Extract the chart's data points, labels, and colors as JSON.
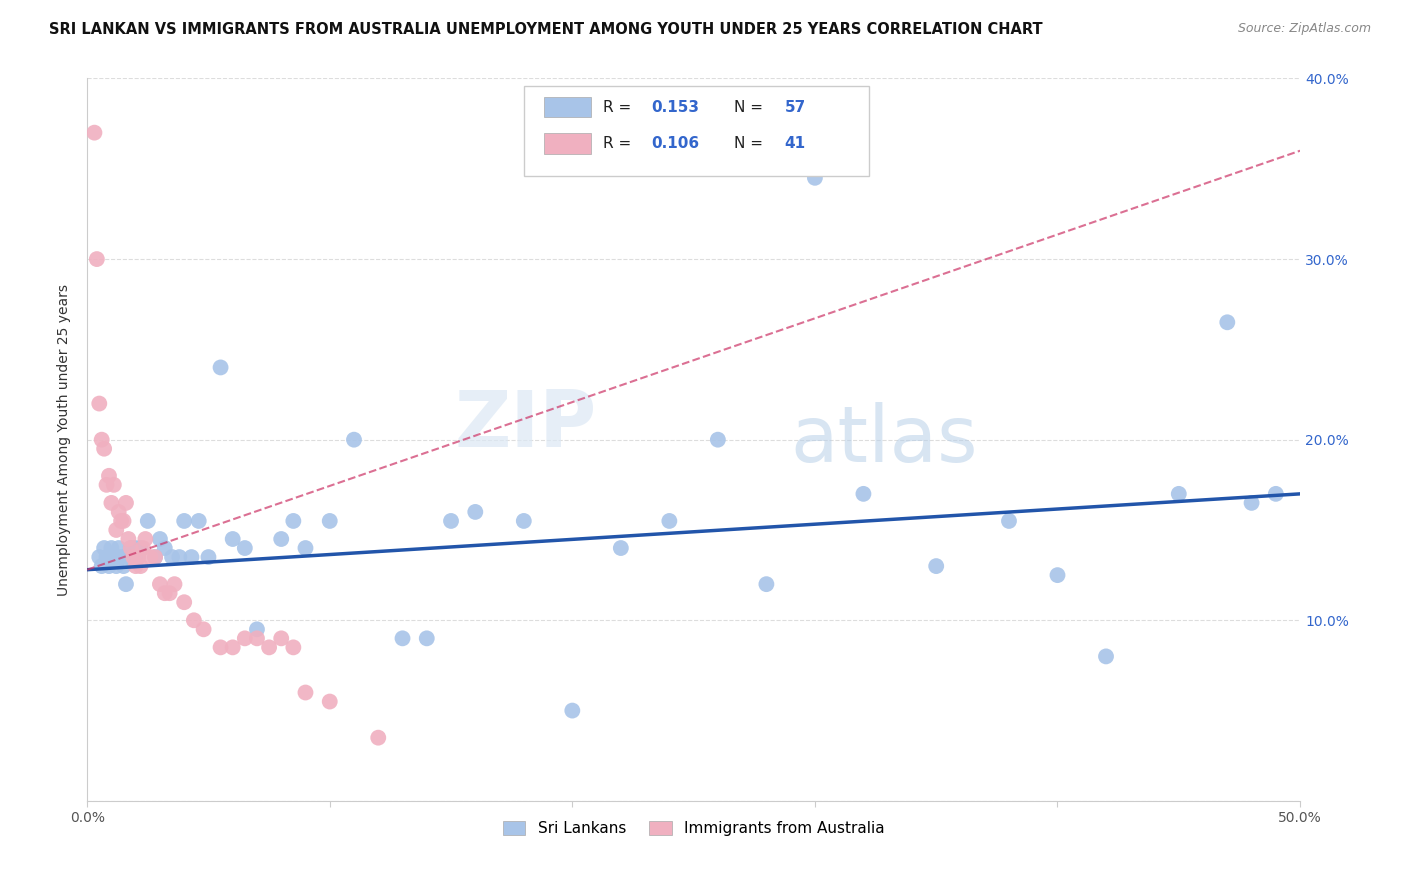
{
  "title": "SRI LANKAN VS IMMIGRANTS FROM AUSTRALIA UNEMPLOYMENT AMONG YOUTH UNDER 25 YEARS CORRELATION CHART",
  "source": "Source: ZipAtlas.com",
  "ylabel": "Unemployment Among Youth under 25 years",
  "xlim": [
    0,
    0.5
  ],
  "ylim": [
    0,
    0.4
  ],
  "xticks": [
    0.0,
    0.1,
    0.2,
    0.3,
    0.4,
    0.5
  ],
  "xtick_labels": [
    "0.0%",
    "",
    "",
    "",
    "",
    "50.0%"
  ],
  "yticks": [
    0.0,
    0.1,
    0.2,
    0.3,
    0.4
  ],
  "ytick_labels_right": [
    "",
    "10.0%",
    "20.0%",
    "30.0%",
    "40.0%"
  ],
  "legend_label1": "Sri Lankans",
  "legend_label2": "Immigrants from Australia",
  "R1": 0.153,
  "N1": 57,
  "R2": 0.106,
  "N2": 41,
  "color1": "#a8c4e8",
  "color2": "#f0b0c0",
  "line_color1": "#2255aa",
  "line_color2": "#cc3366",
  "line_color1_dashed": "#cc3366",
  "watermark_zip": "ZIP",
  "watermark_atlas": "atlas",
  "blue_x": [
    0.005,
    0.006,
    0.007,
    0.008,
    0.009,
    0.01,
    0.011,
    0.012,
    0.013,
    0.014,
    0.015,
    0.016,
    0.017,
    0.018,
    0.019,
    0.02,
    0.021,
    0.022,
    0.025,
    0.028,
    0.03,
    0.032,
    0.035,
    0.038,
    0.04,
    0.043,
    0.046,
    0.05,
    0.055,
    0.06,
    0.065,
    0.07,
    0.08,
    0.085,
    0.09,
    0.1,
    0.11,
    0.13,
    0.14,
    0.15,
    0.16,
    0.18,
    0.2,
    0.22,
    0.24,
    0.26,
    0.28,
    0.3,
    0.32,
    0.35,
    0.38,
    0.4,
    0.42,
    0.45,
    0.47,
    0.48,
    0.49
  ],
  "blue_y": [
    0.135,
    0.13,
    0.14,
    0.135,
    0.13,
    0.14,
    0.135,
    0.13,
    0.14,
    0.135,
    0.13,
    0.12,
    0.135,
    0.14,
    0.135,
    0.14,
    0.135,
    0.14,
    0.155,
    0.135,
    0.145,
    0.14,
    0.135,
    0.135,
    0.155,
    0.135,
    0.155,
    0.135,
    0.24,
    0.145,
    0.14,
    0.095,
    0.145,
    0.155,
    0.14,
    0.155,
    0.2,
    0.09,
    0.09,
    0.155,
    0.16,
    0.155,
    0.05,
    0.14,
    0.155,
    0.2,
    0.12,
    0.345,
    0.17,
    0.13,
    0.155,
    0.125,
    0.08,
    0.17,
    0.265,
    0.165,
    0.17
  ],
  "pink_x": [
    0.003,
    0.004,
    0.005,
    0.006,
    0.007,
    0.008,
    0.009,
    0.01,
    0.011,
    0.012,
    0.013,
    0.014,
    0.015,
    0.016,
    0.017,
    0.018,
    0.019,
    0.02,
    0.021,
    0.022,
    0.023,
    0.024,
    0.026,
    0.028,
    0.03,
    0.032,
    0.034,
    0.036,
    0.04,
    0.044,
    0.048,
    0.055,
    0.06,
    0.065,
    0.07,
    0.075,
    0.08,
    0.085,
    0.09,
    0.1,
    0.12
  ],
  "pink_y": [
    0.37,
    0.3,
    0.22,
    0.2,
    0.195,
    0.175,
    0.18,
    0.165,
    0.175,
    0.15,
    0.16,
    0.155,
    0.155,
    0.165,
    0.145,
    0.14,
    0.135,
    0.13,
    0.135,
    0.13,
    0.14,
    0.145,
    0.135,
    0.135,
    0.12,
    0.115,
    0.115,
    0.12,
    0.11,
    0.1,
    0.095,
    0.085,
    0.085,
    0.09,
    0.09,
    0.085,
    0.09,
    0.085,
    0.06,
    0.055,
    0.035
  ],
  "blue_line_x0": 0.0,
  "blue_line_x1": 0.5,
  "blue_line_y0": 0.128,
  "blue_line_y1": 0.17,
  "pink_line_x0": 0.0,
  "pink_line_x1": 0.5,
  "pink_line_y0": 0.128,
  "pink_line_y1": 0.36
}
